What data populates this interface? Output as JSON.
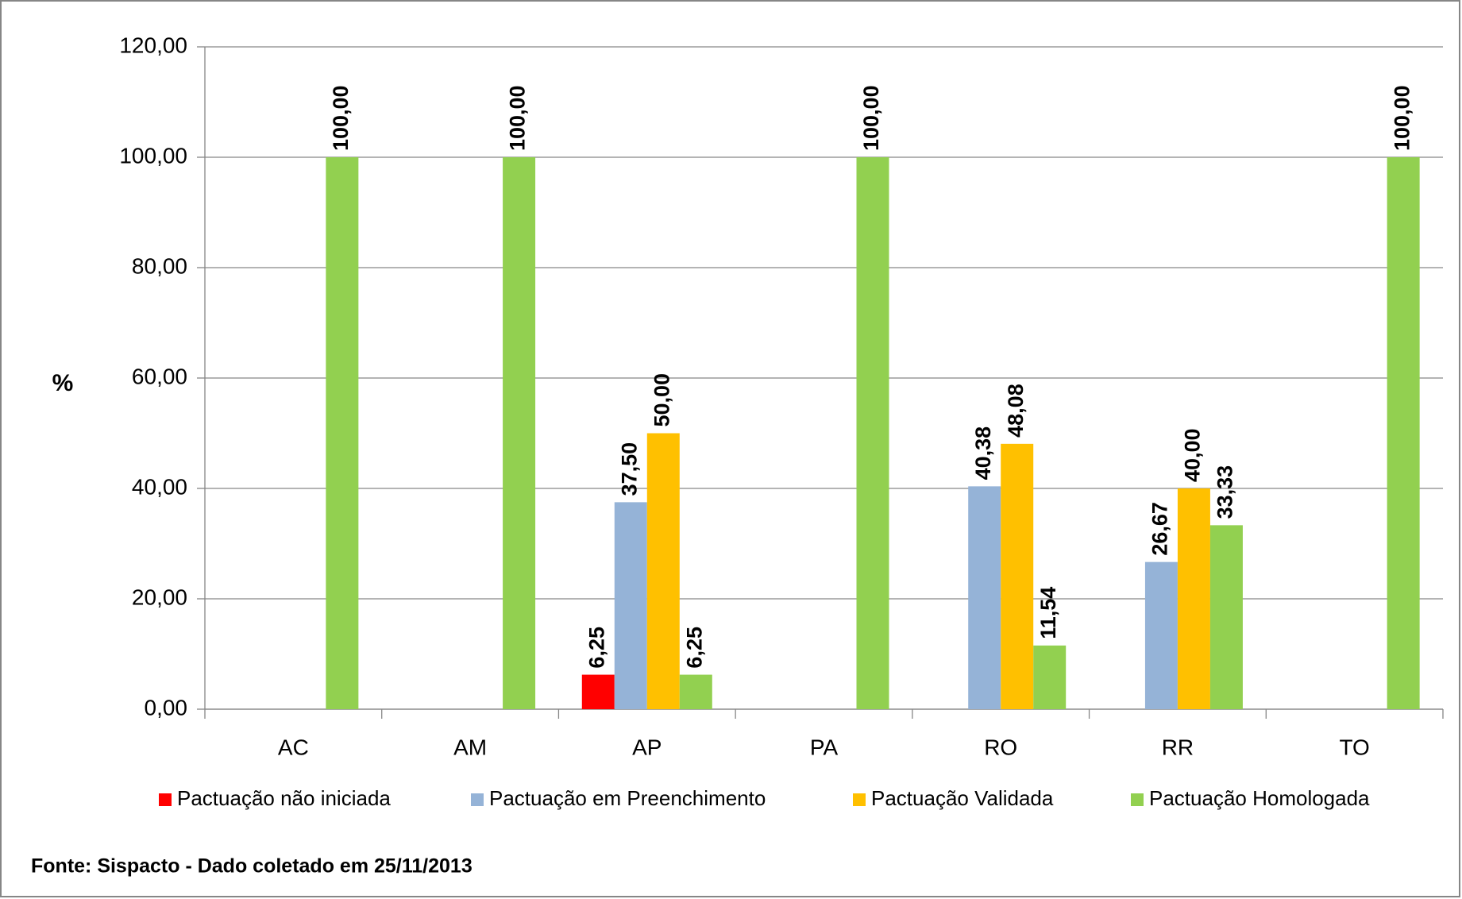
{
  "chart_data": {
    "type": "bar",
    "ylabel": "%",
    "source": "Fonte: Sispacto - Dado coletado em 25/11/2013",
    "categories": [
      "AC",
      "AM",
      "AP",
      "PA",
      "RO",
      "RR",
      "TO"
    ],
    "series": [
      {
        "name": "Pactuação não iniciada",
        "color": "#ff0000",
        "values": [
          null,
          null,
          6.25,
          null,
          null,
          null,
          null
        ],
        "value_labels": [
          null,
          null,
          "6,25",
          null,
          null,
          null,
          null
        ]
      },
      {
        "name": "Pactuação em Preenchimento",
        "color": "#95b3d7",
        "values": [
          null,
          null,
          37.5,
          null,
          40.38,
          26.67,
          null
        ],
        "value_labels": [
          null,
          null,
          "37,50",
          null,
          "40,38",
          "26,67",
          null
        ]
      },
      {
        "name": "Pactuação Validada",
        "color": "#ffc000",
        "values": [
          null,
          null,
          50,
          null,
          48.08,
          40,
          null
        ],
        "value_labels": [
          null,
          null,
          "50,00",
          null,
          "48,08",
          "40,00",
          null
        ]
      },
      {
        "name": "Pactuação Homologada",
        "color": "#92d050",
        "values": [
          100,
          100,
          6.25,
          100,
          11.54,
          33.33,
          100
        ],
        "value_labels": [
          "100,00",
          "100,00",
          "6,25",
          "100,00",
          "11,54",
          "33,33",
          "100,00"
        ]
      }
    ],
    "ylim": [
      0,
      120
    ],
    "yticks": [
      {
        "value": 0,
        "label": "0,00"
      },
      {
        "value": 20,
        "label": "20,00"
      },
      {
        "value": 40,
        "label": "40,00"
      },
      {
        "value": 60,
        "label": "60,00"
      },
      {
        "value": 80,
        "label": "80,00"
      },
      {
        "value": 100,
        "label": "100,00"
      },
      {
        "value": 120,
        "label": "120,00"
      }
    ],
    "grid": true
  }
}
